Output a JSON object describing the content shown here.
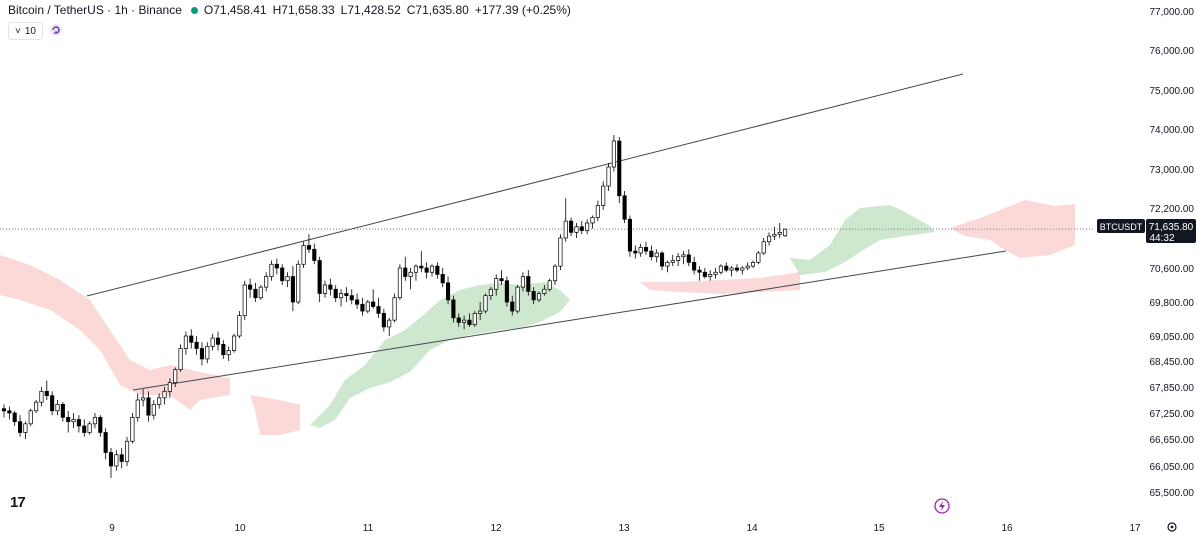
{
  "header": {
    "symbol": "Bitcoin / TetherUS · 1h · Binance",
    "o_label": "O",
    "o": "71,458.41",
    "h_label": "H",
    "h": "71,658.33",
    "l_label": "L",
    "l": "71,428.52",
    "c_label": "C",
    "c": "71,635.80",
    "change": "+177.39 (+0.25%)"
  },
  "indicator": {
    "chevron": "˅",
    "value": "10"
  },
  "logo": "17",
  "price_tag": {
    "symbol": "BTCUSDT",
    "price": "71,635.80",
    "countdown": "44:32"
  },
  "colors": {
    "up_body": "#ffffff",
    "down_body": "#000000",
    "wick": "#000000",
    "cloud_green": "#a5d6a7",
    "cloud_red": "#f7b9b9",
    "trendline": "#434651",
    "flash": "#9c27b0"
  },
  "chart_data": {
    "type": "candlestick",
    "y_ticks": [
      "77,000.00",
      "76,000.00",
      "75,000.00",
      "74,000.00",
      "73,000.00",
      "72,200.00",
      "70,600.00",
      "69,800.00",
      "69,050.00",
      "68,450.00",
      "67,850.00",
      "67,250.00",
      "66,650.00",
      "66,050.00",
      "65,500.00"
    ],
    "y_tick_values": [
      77000,
      76000,
      75000,
      74000,
      73000,
      72200,
      70600,
      69800,
      69050,
      68450,
      67850,
      67250,
      66650,
      66050,
      65500
    ],
    "x_ticks": [
      "9",
      "10",
      "11",
      "12",
      "13",
      "14",
      "15",
      "16",
      "17"
    ],
    "last_price": 71635.8,
    "candles": [
      [
        67350,
        67450,
        67150,
        67300
      ],
      [
        67300,
        67400,
        67100,
        67250
      ],
      [
        67250,
        67300,
        66950,
        67050
      ],
      [
        67050,
        67200,
        66700,
        66800
      ],
      [
        66800,
        67050,
        66650,
        67000
      ],
      [
        67000,
        67350,
        66950,
        67300
      ],
      [
        67300,
        67550,
        67250,
        67500
      ],
      [
        67500,
        67850,
        67400,
        67750
      ],
      [
        67750,
        68000,
        67550,
        67650
      ],
      [
        67650,
        67750,
        67200,
        67300
      ],
      [
        67300,
        67550,
        67200,
        67450
      ],
      [
        67450,
        67500,
        67050,
        67150
      ],
      [
        67150,
        67300,
        66800,
        67050
      ],
      [
        67050,
        67250,
        66900,
        67100
      ],
      [
        67100,
        67200,
        66800,
        66950
      ],
      [
        66950,
        67100,
        66700,
        66800
      ],
      [
        66800,
        67050,
        66750,
        67000
      ],
      [
        67000,
        67250,
        66900,
        67150
      ],
      [
        67150,
        67200,
        66700,
        66800
      ],
      [
        66800,
        66900,
        66200,
        66350
      ],
      [
        66350,
        66450,
        65800,
        66050
      ],
      [
        66050,
        66400,
        65950,
        66300
      ],
      [
        66300,
        66450,
        66000,
        66150
      ],
      [
        66150,
        66700,
        66050,
        66600
      ],
      [
        66600,
        67250,
        66550,
        67150
      ],
      [
        67150,
        67700,
        67050,
        67550
      ],
      [
        67550,
        67800,
        67400,
        67600
      ],
      [
        67600,
        67750,
        67050,
        67200
      ],
      [
        67200,
        67550,
        67100,
        67450
      ],
      [
        67450,
        67700,
        67350,
        67600
      ],
      [
        67600,
        67850,
        67450,
        67750
      ],
      [
        67750,
        68050,
        67600,
        67950
      ],
      [
        67950,
        68300,
        67850,
        68250
      ],
      [
        68250,
        68850,
        68200,
        68750
      ],
      [
        68750,
        69150,
        68600,
        69050
      ],
      [
        69050,
        69200,
        68750,
        68900
      ],
      [
        68900,
        69050,
        68600,
        68750
      ],
      [
        68750,
        68900,
        68350,
        68500
      ],
      [
        68500,
        68900,
        68400,
        68800
      ],
      [
        68800,
        69100,
        68700,
        69000
      ],
      [
        69000,
        69150,
        68700,
        68850
      ],
      [
        68850,
        68950,
        68500,
        68600
      ],
      [
        68600,
        68800,
        68450,
        68700
      ],
      [
        68700,
        69100,
        68650,
        69050
      ],
      [
        69050,
        69600,
        69000,
        69500
      ],
      [
        69500,
        70300,
        69400,
        70200
      ],
      [
        70200,
        70350,
        69900,
        70100
      ],
      [
        70100,
        70250,
        69800,
        69900
      ],
      [
        69900,
        70200,
        69850,
        70150
      ],
      [
        70150,
        70500,
        70050,
        70400
      ],
      [
        70400,
        70800,
        70300,
        70700
      ],
      [
        70700,
        70850,
        70450,
        70600
      ],
      [
        70600,
        70700,
        70200,
        70300
      ],
      [
        70300,
        70500,
        70150,
        70400
      ],
      [
        70400,
        70650,
        69600,
        69800
      ],
      [
        69800,
        70800,
        69750,
        70700
      ],
      [
        70700,
        71300,
        70600,
        71200
      ],
      [
        71200,
        71500,
        71000,
        71100
      ],
      [
        71100,
        71250,
        70700,
        70800
      ],
      [
        70800,
        70900,
        69800,
        70000
      ],
      [
        70000,
        70300,
        69900,
        70200
      ],
      [
        70200,
        70350,
        69950,
        70100
      ],
      [
        70100,
        70200,
        69800,
        69900
      ],
      [
        69900,
        70100,
        69700,
        70000
      ],
      [
        70000,
        70150,
        69800,
        69950
      ],
      [
        69950,
        70100,
        69750,
        69850
      ],
      [
        69850,
        70000,
        69650,
        69750
      ],
      [
        69750,
        69900,
        69500,
        69600
      ],
      [
        69600,
        69850,
        69550,
        69800
      ],
      [
        69800,
        70100,
        69650,
        69700
      ],
      [
        69700,
        69900,
        69450,
        69550
      ],
      [
        69550,
        69650,
        69150,
        69250
      ],
      [
        69250,
        69450,
        69050,
        69400
      ],
      [
        69400,
        70000,
        69350,
        69900
      ],
      [
        69900,
        70700,
        69850,
        70600
      ],
      [
        70600,
        70900,
        70300,
        70400
      ],
      [
        70400,
        70600,
        70100,
        70500
      ],
      [
        70500,
        70700,
        70300,
        70650
      ],
      [
        70650,
        71050,
        70500,
        70600
      ],
      [
        70600,
        70750,
        70350,
        70500
      ],
      [
        70500,
        70700,
        70400,
        70650
      ],
      [
        70650,
        70750,
        70350,
        70450
      ],
      [
        70450,
        70600,
        70150,
        70250
      ],
      [
        70250,
        70400,
        69750,
        69850
      ],
      [
        69850,
        69950,
        69350,
        69450
      ],
      [
        69450,
        69550,
        69250,
        69350
      ],
      [
        69350,
        69500,
        69200,
        69400
      ],
      [
        69400,
        69550,
        69250,
        69300
      ],
      [
        69300,
        69600,
        69250,
        69550
      ],
      [
        69550,
        69800,
        69400,
        69600
      ],
      [
        69600,
        70000,
        69550,
        69950
      ],
      [
        69950,
        70150,
        69850,
        70100
      ],
      [
        70100,
        70450,
        69950,
        70350
      ],
      [
        70350,
        70550,
        70200,
        70300
      ],
      [
        70300,
        70400,
        69700,
        69800
      ],
      [
        69800,
        69950,
        69500,
        69600
      ],
      [
        69600,
        70200,
        69550,
        70150
      ],
      [
        70150,
        70500,
        70050,
        70400
      ],
      [
        70400,
        70550,
        69950,
        70050
      ],
      [
        70050,
        70150,
        69750,
        69850
      ],
      [
        69850,
        70050,
        69800,
        70000
      ],
      [
        70000,
        70200,
        69950,
        70100
      ],
      [
        70100,
        70350,
        70050,
        70300
      ],
      [
        70300,
        70700,
        70200,
        70650
      ],
      [
        70650,
        71500,
        70550,
        71400
      ],
      [
        71400,
        72400,
        71300,
        71850
      ],
      [
        71850,
        71950,
        71450,
        71550
      ],
      [
        71550,
        71800,
        71400,
        71700
      ],
      [
        71700,
        71850,
        71500,
        71600
      ],
      [
        71600,
        71900,
        71500,
        71800
      ],
      [
        71800,
        72000,
        71650,
        71950
      ],
      [
        71950,
        72350,
        71850,
        72250
      ],
      [
        72250,
        72750,
        72150,
        72650
      ],
      [
        72650,
        73150,
        72550,
        73050
      ],
      [
        73050,
        73850,
        72950,
        73700
      ],
      [
        73700,
        73800,
        72300,
        72450
      ],
      [
        72450,
        72550,
        71800,
        71900
      ],
      [
        71900,
        72000,
        70900,
        71050
      ],
      [
        71050,
        71200,
        70850,
        71000
      ],
      [
        71000,
        71250,
        70900,
        71150
      ],
      [
        71150,
        71300,
        70950,
        71050
      ],
      [
        71050,
        71200,
        70800,
        70900
      ],
      [
        70900,
        71100,
        70750,
        71000
      ],
      [
        71000,
        71050,
        70550,
        70650
      ],
      [
        70650,
        70800,
        70500,
        70750
      ],
      [
        70750,
        70950,
        70650,
        70800
      ],
      [
        70800,
        71000,
        70650,
        70900
      ],
      [
        70900,
        71050,
        70700,
        70950
      ],
      [
        70950,
        71100,
        70650,
        70750
      ],
      [
        70750,
        70900,
        70450,
        70550
      ],
      [
        70550,
        70650,
        70300,
        70500
      ],
      [
        70500,
        70600,
        70350,
        70400
      ],
      [
        70400,
        70550,
        70300,
        70450
      ],
      [
        70450,
        70600,
        70350,
        70500
      ],
      [
        70500,
        70700,
        70450,
        70650
      ],
      [
        70650,
        70750,
        70500,
        70550
      ],
      [
        70550,
        70650,
        70400,
        70600
      ],
      [
        70600,
        70700,
        70500,
        70550
      ],
      [
        70550,
        70650,
        70450,
        70600
      ],
      [
        70600,
        70750,
        70550,
        70650
      ],
      [
        70650,
        70800,
        70600,
        70750
      ],
      [
        70750,
        71050,
        70700,
        71000
      ],
      [
        71000,
        71400,
        70950,
        71300
      ],
      [
        71300,
        71550,
        71200,
        71450
      ],
      [
        71450,
        71700,
        71350,
        71500
      ],
      [
        71500,
        71800,
        71400,
        71550
      ],
      [
        71458.41,
        71658.33,
        71428.52,
        71635.8
      ]
    ]
  }
}
